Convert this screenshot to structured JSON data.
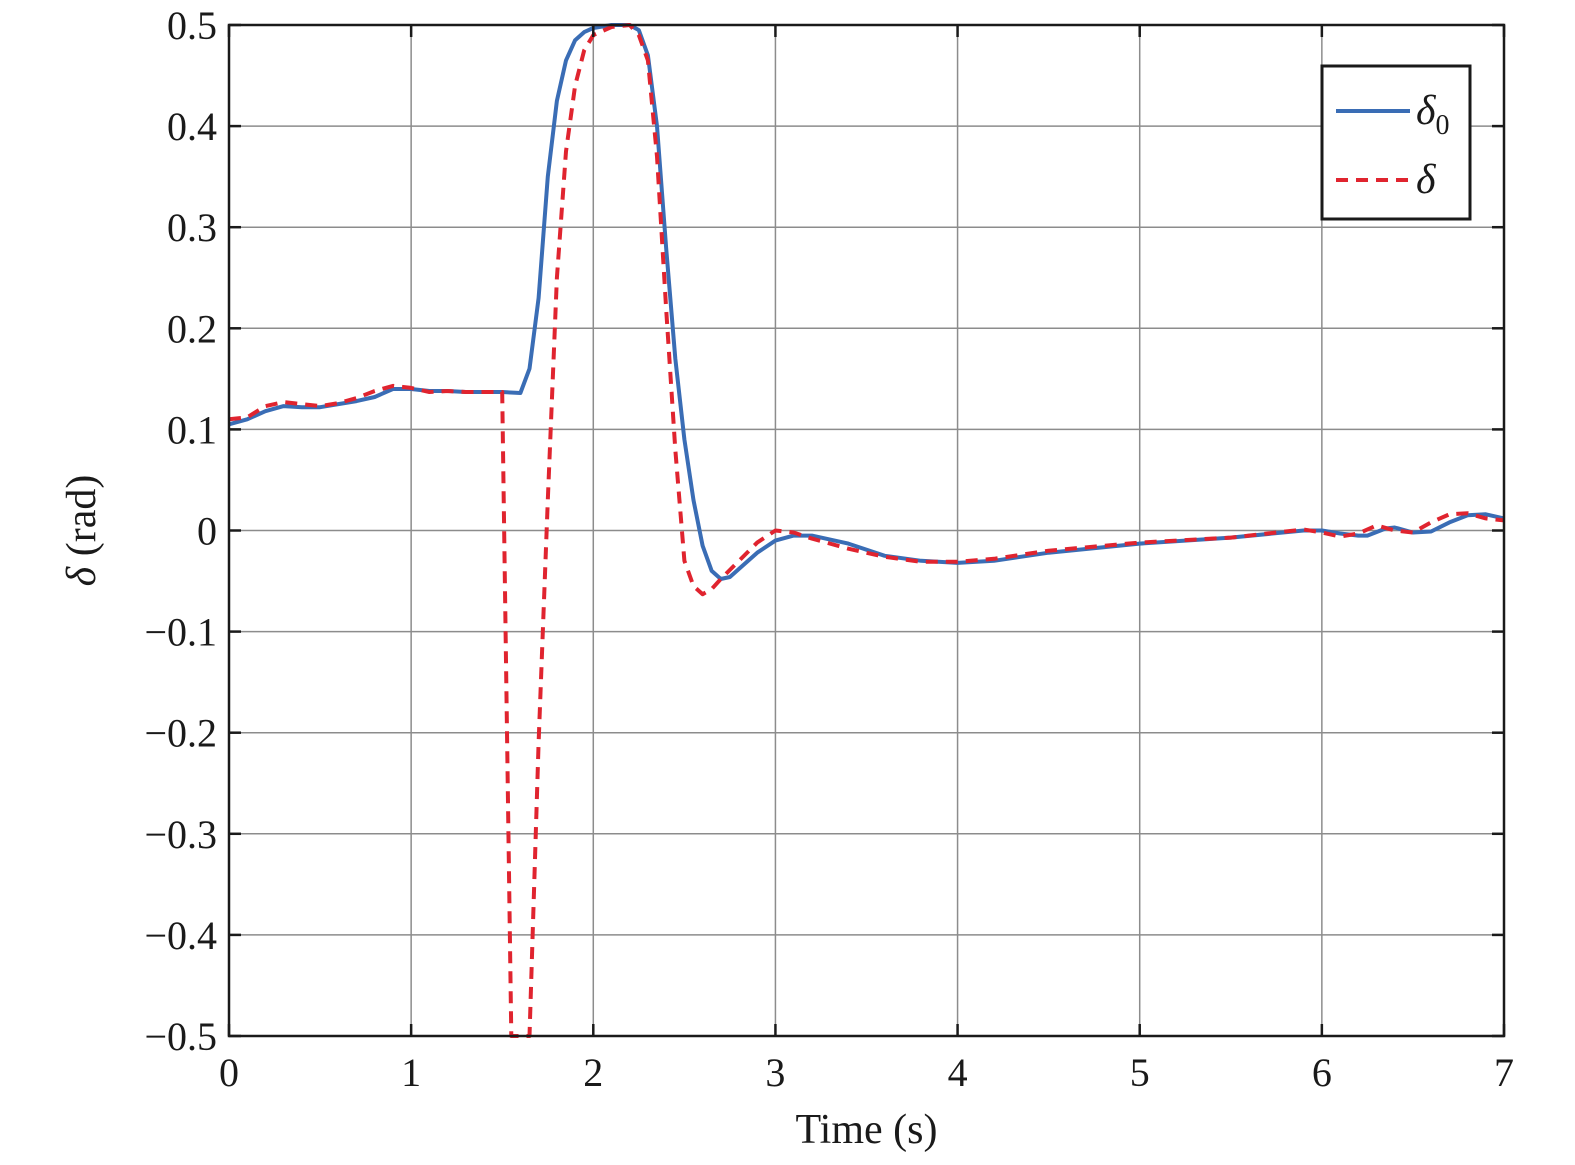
{
  "chart_data": {
    "type": "line",
    "xlabel": "Time (s)",
    "ylabel": "δ (rad)",
    "ylabel_symbol": "δ",
    "ylabel_unit": " (rad)",
    "xlim": [
      0,
      7
    ],
    "ylim": [
      -0.5,
      0.5
    ],
    "xticks": [
      0,
      1,
      2,
      3,
      4,
      5,
      6,
      7
    ],
    "xtick_labels": [
      "0",
      "1",
      "2",
      "3",
      "4",
      "5",
      "6",
      "7"
    ],
    "yticks": [
      -0.5,
      -0.4,
      -0.3,
      -0.2,
      -0.1,
      0,
      0.1,
      0.2,
      0.3,
      0.4,
      0.5
    ],
    "ytick_labels": [
      "−0.5",
      "−0.4",
      "−0.3",
      "−0.2",
      "−0.1",
      "0",
      "0.1",
      "0.2",
      "0.3",
      "0.4",
      "0.5"
    ],
    "grid": true,
    "legend_position": "top-right",
    "series": [
      {
        "name": "δ0",
        "name_base": "δ",
        "name_sub": "0",
        "color": "#3a6db5",
        "style": "solid",
        "points": [
          [
            0,
            0.105
          ],
          [
            0.1,
            0.11
          ],
          [
            0.2,
            0.118
          ],
          [
            0.3,
            0.123
          ],
          [
            0.4,
            0.122
          ],
          [
            0.5,
            0.122
          ],
          [
            0.6,
            0.125
          ],
          [
            0.7,
            0.128
          ],
          [
            0.8,
            0.132
          ],
          [
            0.9,
            0.14
          ],
          [
            1.0,
            0.14
          ],
          [
            1.1,
            0.138
          ],
          [
            1.2,
            0.138
          ],
          [
            1.3,
            0.137
          ],
          [
            1.4,
            0.137
          ],
          [
            1.5,
            0.137
          ],
          [
            1.6,
            0.136
          ],
          [
            1.65,
            0.16
          ],
          [
            1.7,
            0.23
          ],
          [
            1.75,
            0.35
          ],
          [
            1.8,
            0.425
          ],
          [
            1.85,
            0.465
          ],
          [
            1.9,
            0.485
          ],
          [
            1.95,
            0.493
          ],
          [
            2.0,
            0.497
          ],
          [
            2.1,
            0.5
          ],
          [
            2.2,
            0.5
          ],
          [
            2.25,
            0.495
          ],
          [
            2.3,
            0.47
          ],
          [
            2.35,
            0.4
          ],
          [
            2.4,
            0.28
          ],
          [
            2.45,
            0.17
          ],
          [
            2.5,
            0.09
          ],
          [
            2.55,
            0.03
          ],
          [
            2.6,
            -0.015
          ],
          [
            2.65,
            -0.04
          ],
          [
            2.7,
            -0.048
          ],
          [
            2.75,
            -0.046
          ],
          [
            2.8,
            -0.038
          ],
          [
            2.9,
            -0.022
          ],
          [
            3.0,
            -0.01
          ],
          [
            3.1,
            -0.005
          ],
          [
            3.2,
            -0.005
          ],
          [
            3.4,
            -0.013
          ],
          [
            3.6,
            -0.025
          ],
          [
            3.8,
            -0.03
          ],
          [
            4.0,
            -0.032
          ],
          [
            4.2,
            -0.03
          ],
          [
            4.5,
            -0.022
          ],
          [
            5.0,
            -0.013
          ],
          [
            5.5,
            -0.007
          ],
          [
            5.9,
            0.0
          ],
          [
            6.0,
            0.0
          ],
          [
            6.1,
            -0.003
          ],
          [
            6.2,
            -0.005
          ],
          [
            6.25,
            -0.005
          ],
          [
            6.35,
            0.002
          ],
          [
            6.4,
            0.003
          ],
          [
            6.5,
            -0.002
          ],
          [
            6.6,
            -0.001
          ],
          [
            6.7,
            0.008
          ],
          [
            6.8,
            0.015
          ],
          [
            6.9,
            0.016
          ],
          [
            7.0,
            0.012
          ]
        ]
      },
      {
        "name": "δ",
        "name_base": "δ",
        "name_sub": "",
        "color": "#e0242f",
        "style": "dashed",
        "points": [
          [
            0,
            0.11
          ],
          [
            0.1,
            0.112
          ],
          [
            0.2,
            0.123
          ],
          [
            0.3,
            0.127
          ],
          [
            0.4,
            0.125
          ],
          [
            0.5,
            0.123
          ],
          [
            0.6,
            0.126
          ],
          [
            0.7,
            0.131
          ],
          [
            0.8,
            0.138
          ],
          [
            0.9,
            0.143
          ],
          [
            1.0,
            0.141
          ],
          [
            1.1,
            0.137
          ],
          [
            1.2,
            0.138
          ],
          [
            1.3,
            0.137
          ],
          [
            1.4,
            0.137
          ],
          [
            1.5,
            0.137
          ],
          [
            1.55,
            -0.5
          ],
          [
            1.65,
            -0.5
          ],
          [
            1.7,
            -0.21
          ],
          [
            1.75,
            0.03
          ],
          [
            1.8,
            0.25
          ],
          [
            1.85,
            0.375
          ],
          [
            1.9,
            0.44
          ],
          [
            1.95,
            0.475
          ],
          [
            2.0,
            0.49
          ],
          [
            2.1,
            0.498
          ],
          [
            2.2,
            0.5
          ],
          [
            2.25,
            0.49
          ],
          [
            2.3,
            0.465
          ],
          [
            2.35,
            0.37
          ],
          [
            2.4,
            0.22
          ],
          [
            2.45,
            0.08
          ],
          [
            2.5,
            -0.03
          ],
          [
            2.55,
            -0.055
          ],
          [
            2.6,
            -0.063
          ],
          [
            2.65,
            -0.058
          ],
          [
            2.7,
            -0.048
          ],
          [
            2.8,
            -0.03
          ],
          [
            2.9,
            -0.012
          ],
          [
            3.0,
            0.0
          ],
          [
            3.1,
            -0.002
          ],
          [
            3.2,
            -0.008
          ],
          [
            3.4,
            -0.018
          ],
          [
            3.6,
            -0.026
          ],
          [
            3.8,
            -0.031
          ],
          [
            4.0,
            -0.031
          ],
          [
            4.2,
            -0.028
          ],
          [
            4.5,
            -0.02
          ],
          [
            5.0,
            -0.012
          ],
          [
            5.5,
            -0.007
          ],
          [
            5.9,
            0.001
          ],
          [
            6.0,
            -0.002
          ],
          [
            6.1,
            -0.006
          ],
          [
            6.2,
            -0.003
          ],
          [
            6.3,
            0.005
          ],
          [
            6.4,
            0.0
          ],
          [
            6.5,
            -0.002
          ],
          [
            6.6,
            0.008
          ],
          [
            6.7,
            0.016
          ],
          [
            6.8,
            0.017
          ],
          [
            6.9,
            0.012
          ],
          [
            7.0,
            0.01
          ]
        ]
      }
    ]
  }
}
